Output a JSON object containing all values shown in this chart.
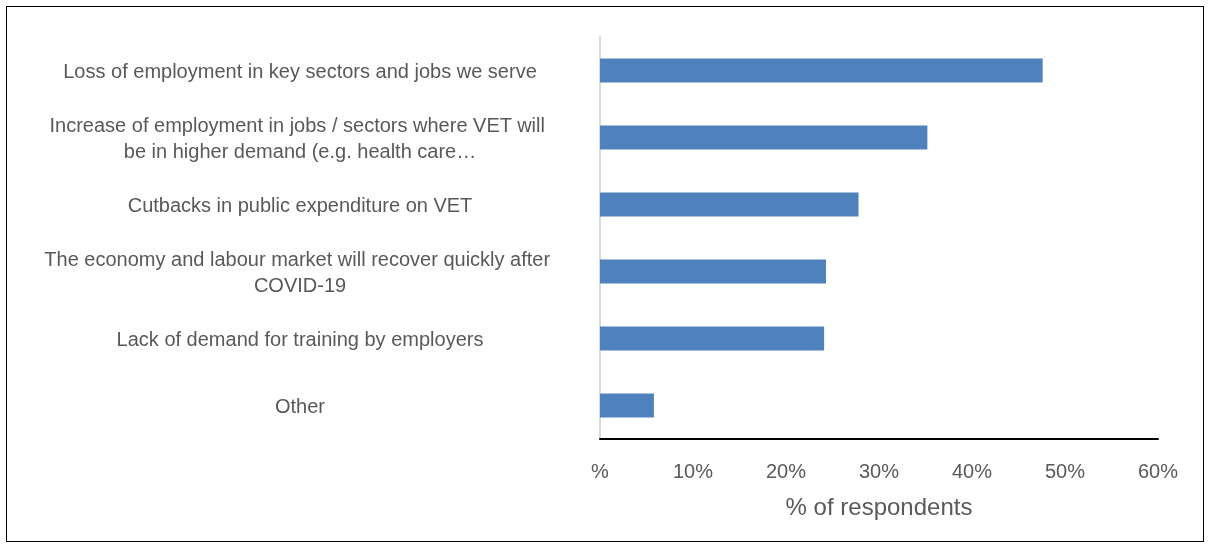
{
  "chart_data": {
    "type": "bar",
    "orientation": "horizontal",
    "xlabel": "% of respondents",
    "categories": [
      "Loss of employment in key sectors and jobs we serve",
      "Increase of employment in jobs / sectors where VET will be in higher demand (e.g. health care…",
      "Cutbacks in public expenditure on VET",
      "The economy and labour market will recover quickly after COVID-19",
      "Lack of demand for training by employers",
      "Other"
    ],
    "values": [
      47.6,
      35.2,
      27.8,
      24.3,
      24.1,
      5.8
    ],
    "color": "#4f81bd",
    "xlim": [
      0,
      60
    ],
    "xticks": [
      {
        "value": 0,
        "label": "%"
      },
      {
        "value": 10,
        "label": "10%"
      },
      {
        "value": 20,
        "label": "20%"
      },
      {
        "value": 30,
        "label": "30%"
      },
      {
        "value": 40,
        "label": "40%"
      },
      {
        "value": 50,
        "label": "50%"
      },
      {
        "value": 60,
        "label": "60%"
      }
    ],
    "grid": false
  }
}
